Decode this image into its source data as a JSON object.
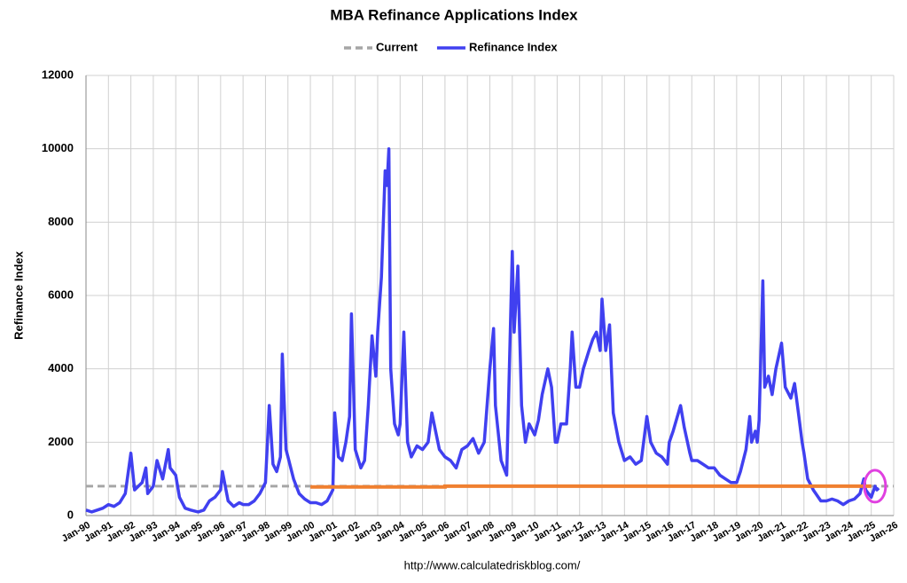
{
  "chart_data": {
    "type": "line",
    "title": "MBA Refinance Applications Index",
    "ylabel": "Refinance Index",
    "source": "http://www.calculatedriskblog.com/",
    "xlim": [
      "Jan-90",
      "Jan-26"
    ],
    "xticks": [
      "Jan-90",
      "Jan-91",
      "Jan-92",
      "Jan-93",
      "Jan-94",
      "Jan-95",
      "Jan-96",
      "Jan-97",
      "Jan-98",
      "Jan-99",
      "Jan-00",
      "Jan-01",
      "Jan-02",
      "Jan-03",
      "Jan-04",
      "Jan-05",
      "Jan-06",
      "Jan-07",
      "Jan-08",
      "Jan-09",
      "Jan-10",
      "Jan-11",
      "Jan-12",
      "Jan-13",
      "Jan-14",
      "Jan-15",
      "Jan-16",
      "Jan-17",
      "Jan-18",
      "Jan-19",
      "Jan-20",
      "Jan-21",
      "Jan-22",
      "Jan-23",
      "Jan-24",
      "Jan-25",
      "Jan-26"
    ],
    "ylim": [
      0,
      12000
    ],
    "yticks": [
      0,
      2000,
      4000,
      6000,
      8000,
      10000,
      12000
    ],
    "grid": true,
    "legend": "top",
    "series": [
      {
        "name": "Current",
        "color": "#a6a6a6",
        "dashed": true,
        "x": [
          "Jan-90",
          "Jan-26"
        ],
        "values": [
          800,
          800
        ]
      },
      {
        "name": "Refinance Index",
        "color": "#4040f0",
        "x": [
          "Jan-90",
          "Apr-90",
          "Jul-90",
          "Oct-90",
          "Jan-91",
          "Apr-91",
          "Jul-91",
          "Oct-91",
          "Jan-92",
          "Mar-92",
          "Jul-92",
          "Sep-92",
          "Oct-92",
          "Jan-93",
          "Mar-93",
          "Jun-93",
          "Sep-93",
          "Oct-93",
          "Jan-94",
          "Mar-94",
          "Jun-94",
          "Sep-94",
          "Jan-95",
          "Apr-95",
          "Jul-95",
          "Oct-95",
          "Jan-96",
          "Feb-96",
          "May-96",
          "Aug-96",
          "Nov-96",
          "Jan-97",
          "Apr-97",
          "Jul-97",
          "Oct-97",
          "Jan-98",
          "Mar-98",
          "May-98",
          "Jul-98",
          "Sep-98",
          "Oct-98",
          "Dec-98",
          "Jan-99",
          "Apr-99",
          "Jul-99",
          "Oct-99",
          "Jan-00",
          "Apr-00",
          "Jul-00",
          "Oct-00",
          "Jan-01",
          "Feb-01",
          "Apr-01",
          "Jun-01",
          "Aug-01",
          "Oct-01",
          "Nov-01",
          "Jan-02",
          "Apr-02",
          "Jun-02",
          "Aug-02",
          "Oct-02",
          "Dec-02",
          "Jan-03",
          "Mar-03",
          "May-03",
          "Jun-03",
          "Jul-03",
          "Aug-03",
          "Oct-03",
          "Dec-03",
          "Jan-04",
          "Mar-04",
          "May-04",
          "Jul-04",
          "Oct-04",
          "Jan-05",
          "Apr-05",
          "Jun-05",
          "Aug-05",
          "Oct-05",
          "Jan-06",
          "Apr-06",
          "Jul-06",
          "Oct-06",
          "Jan-07",
          "Apr-07",
          "Jul-07",
          "Oct-07",
          "Jan-08",
          "Mar-08",
          "Apr-08",
          "Jul-08",
          "Oct-08",
          "Jan-09",
          "Feb-09",
          "Apr-09",
          "Jun-09",
          "Aug-09",
          "Oct-09",
          "Jan-10",
          "Mar-10",
          "May-10",
          "Aug-10",
          "Oct-10",
          "Dec-10",
          "Jan-11",
          "Mar-11",
          "Jun-11",
          "Aug-11",
          "Sep-11",
          "Nov-11",
          "Jan-12",
          "Mar-12",
          "Jun-12",
          "Aug-12",
          "Oct-12",
          "Dec-12",
          "Jan-13",
          "Mar-13",
          "May-13",
          "Jul-13",
          "Oct-13",
          "Jan-14",
          "Apr-14",
          "Jul-14",
          "Oct-14",
          "Jan-15",
          "Mar-15",
          "Jun-15",
          "Sep-15",
          "Dec-15",
          "Jan-16",
          "Mar-16",
          "Jul-16",
          "Sep-16",
          "Dec-16",
          "Jan-17",
          "Apr-17",
          "Jul-17",
          "Oct-17",
          "Jan-18",
          "Apr-18",
          "Jul-18",
          "Oct-18",
          "Jan-19",
          "Mar-19",
          "Jun-19",
          "Aug-19",
          "Sep-19",
          "Nov-19",
          "Dec-19",
          "Jan-20",
          "Mar-20",
          "Apr-20",
          "Jun-20",
          "Aug-20",
          "Oct-20",
          "Jan-21",
          "Mar-21",
          "Jun-21",
          "Aug-21",
          "Oct-21",
          "Dec-21",
          "Jan-22",
          "Mar-22",
          "Jun-22",
          "Oct-22",
          "Jan-23",
          "Apr-23",
          "Jul-23",
          "Oct-23",
          "Jan-24",
          "Apr-24",
          "Jul-24",
          "Sep-24",
          "Oct-24",
          "Jan-25",
          "Mar-25",
          "Apr-25",
          "May-25"
        ],
        "values": [
          150,
          100,
          150,
          200,
          300,
          250,
          350,
          600,
          1700,
          700,
          900,
          1300,
          600,
          800,
          1500,
          1000,
          1800,
          1300,
          1100,
          500,
          200,
          150,
          100,
          150,
          400,
          500,
          700,
          1200,
          400,
          250,
          350,
          300,
          300,
          400,
          600,
          900,
          3000,
          1400,
          1200,
          1600,
          4400,
          1800,
          1600,
          1000,
          600,
          450,
          350,
          350,
          300,
          400,
          700,
          2800,
          1600,
          1500,
          2000,
          2700,
          5500,
          1800,
          1300,
          1500,
          3000,
          4900,
          3800,
          5000,
          6500,
          9400,
          9000,
          10000,
          4000,
          2500,
          2200,
          2500,
          5000,
          2000,
          1600,
          1900,
          1800,
          2000,
          2800,
          2300,
          1800,
          1600,
          1500,
          1300,
          1800,
          1900,
          2100,
          1700,
          2000,
          4000,
          5100,
          3000,
          1500,
          1100,
          7200,
          5000,
          6800,
          3000,
          2000,
          2500,
          2200,
          2600,
          3300,
          4000,
          3500,
          2000,
          2000,
          2500,
          2500,
          4000,
          5000,
          3500,
          3500,
          4000,
          4500,
          4800,
          5000,
          4500,
          5900,
          4500,
          5200,
          2800,
          2000,
          1500,
          1600,
          1400,
          1500,
          2700,
          2000,
          1700,
          1600,
          1400,
          2000,
          2300,
          3000,
          2400,
          1700,
          1500,
          1500,
          1400,
          1300,
          1300,
          1100,
          1000,
          900,
          900,
          1200,
          1800,
          2700,
          2000,
          2300,
          2000,
          2600,
          6400,
          3500,
          3800,
          3300,
          4000,
          4700,
          3500,
          3200,
          3600,
          2800,
          2000,
          1700,
          1000,
          700,
          400,
          400,
          450,
          400,
          300,
          400,
          450,
          600,
          1000,
          700,
          500,
          800,
          700,
          750
        ]
      }
    ],
    "highlight": {
      "color": "#f08030",
      "x": [
        "Jan-00",
        "Jan-06",
        "Jan-06",
        "Jan-25"
      ],
      "values": [
        780,
        780,
        800,
        800
      ]
    },
    "circle": {
      "color": "#e040e0",
      "x": "Mar-25",
      "value": 800
    }
  }
}
